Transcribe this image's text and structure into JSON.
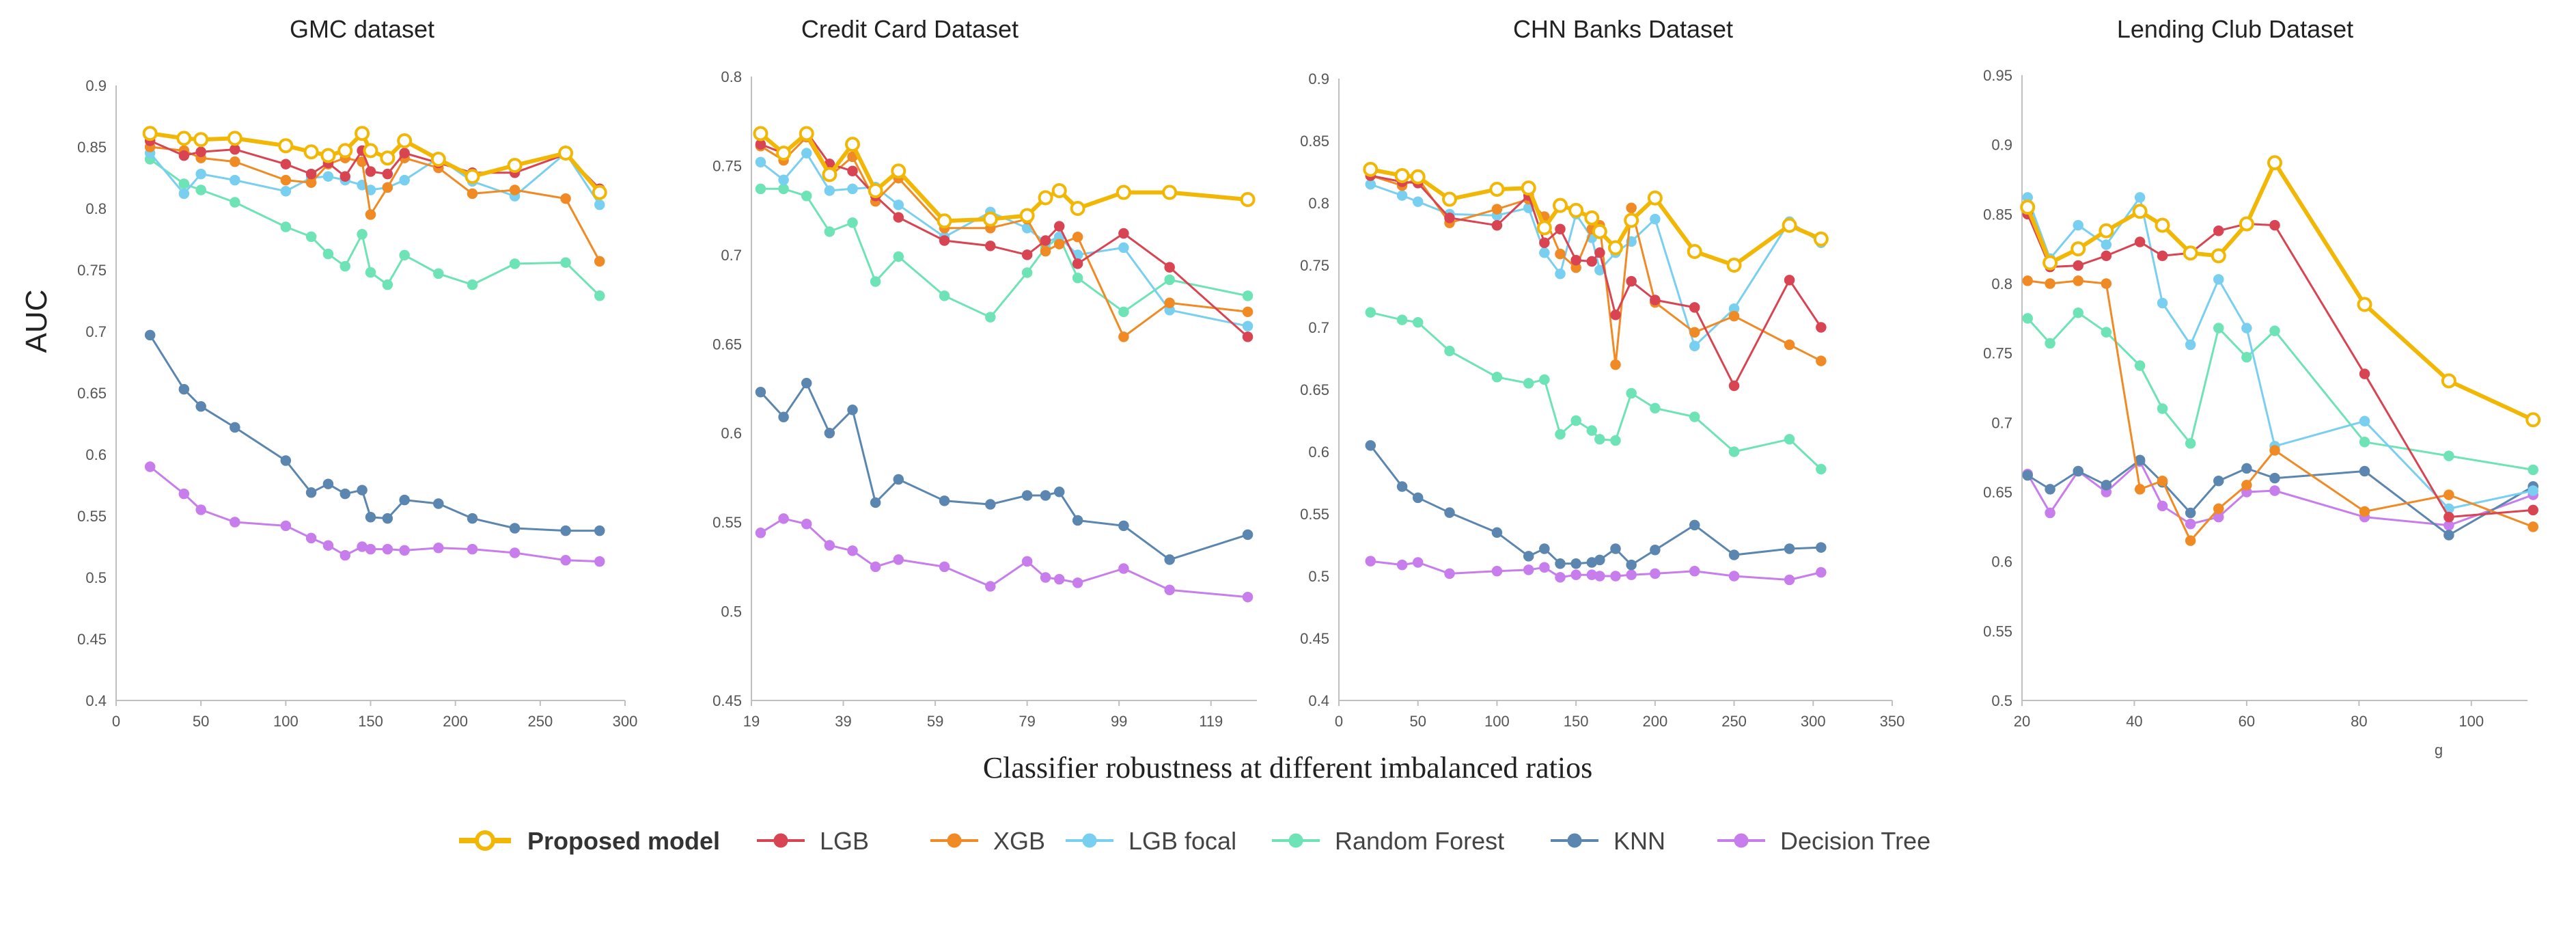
{
  "figure": {
    "ylabel": "AUC",
    "xlabel": "Classifier robustness at different imbalanced ratios"
  },
  "series_styles": [
    {
      "name": "Proposed model",
      "color": "#F2B705",
      "fill": "#ffffff",
      "width": 6,
      "marker": 9
    },
    {
      "name": "LGB",
      "color": "#D94452",
      "fill": "#D94452",
      "width": 3,
      "marker": 7
    },
    {
      "name": "XGB",
      "color": "#F08A24",
      "fill": "#F08A24",
      "width": 3,
      "marker": 7
    },
    {
      "name": "LGB focal",
      "color": "#79CFF0",
      "fill": "#79CFF0",
      "width": 3,
      "marker": 7
    },
    {
      "name": "Random Forest",
      "color": "#6EE3B5",
      "fill": "#6EE3B5",
      "width": 3,
      "marker": 7
    },
    {
      "name": "KNN",
      "color": "#5B86B0",
      "fill": "#5B86B0",
      "width": 3,
      "marker": 7
    },
    {
      "name": "Decision Tree",
      "color": "#C77DEB",
      "fill": "#C77DEB",
      "width": 3,
      "marker": 7
    }
  ],
  "chart_data": [
    {
      "type": "line",
      "title": "GMC dataset",
      "ylim": [
        0.4,
        0.9
      ],
      "yticks": [
        0.4,
        0.45,
        0.5,
        0.55,
        0.6,
        0.65,
        0.7,
        0.75,
        0.8,
        0.85,
        0.9
      ],
      "xlim": [
        0,
        300
      ],
      "xticks": [
        0,
        50,
        100,
        150,
        200,
        250,
        300
      ],
      "x": [
        20,
        40,
        50,
        70,
        100,
        115,
        125,
        135,
        145,
        150,
        160,
        170,
        190,
        210,
        235,
        265,
        285
      ],
      "series": [
        {
          "name": "Proposed model",
          "values": [
            0.861,
            0.857,
            0.856,
            0.857,
            0.851,
            0.846,
            0.843,
            0.847,
            0.861,
            0.847,
            0.841,
            0.855,
            0.84,
            0.826,
            0.835,
            0.845,
            0.813
          ]
        },
        {
          "name": "LGB",
          "values": [
            0.855,
            0.843,
            0.846,
            0.848,
            0.836,
            0.828,
            0.837,
            0.826,
            0.847,
            0.83,
            0.828,
            0.845,
            0.837,
            0.829,
            0.829,
            0.844,
            0.816
          ]
        },
        {
          "name": "XGB",
          "values": [
            0.85,
            0.847,
            0.841,
            0.838,
            0.823,
            0.821,
            0.836,
            0.841,
            0.838,
            0.795,
            0.817,
            0.841,
            0.833,
            0.812,
            0.815,
            0.808,
            0.757
          ]
        },
        {
          "name": "LGB focal",
          "values": [
            0.845,
            0.812,
            0.828,
            0.823,
            0.814,
            0.825,
            0.826,
            0.823,
            0.819,
            0.815,
            0.817,
            0.823,
            0.841,
            0.822,
            0.81,
            0.845,
            0.803
          ]
        },
        {
          "name": "Random Forest",
          "values": [
            0.84,
            0.82,
            0.815,
            0.805,
            0.785,
            0.777,
            0.763,
            0.753,
            0.779,
            0.748,
            0.738,
            0.762,
            0.747,
            0.738,
            0.755,
            0.756,
            0.729
          ]
        },
        {
          "name": "KNN",
          "values": [
            0.697,
            0.653,
            0.639,
            0.622,
            0.595,
            0.569,
            0.576,
            0.568,
            0.571,
            0.549,
            0.548,
            0.563,
            0.56,
            0.548,
            0.54,
            0.538,
            0.538
          ]
        },
        {
          "name": "Decision Tree",
          "values": [
            0.59,
            0.568,
            0.555,
            0.545,
            0.542,
            0.532,
            0.526,
            0.518,
            0.525,
            0.523,
            0.523,
            0.522,
            0.524,
            0.523,
            0.52,
            0.514,
            0.513
          ]
        }
      ]
    },
    {
      "type": "line",
      "title": "Credit Card Dataset",
      "ylim": [
        0.45,
        0.8
      ],
      "yticks": [
        0.45,
        0.5,
        0.55,
        0.6,
        0.65,
        0.7,
        0.75,
        0.8
      ],
      "xlim": [
        19,
        129
      ],
      "xticks": [
        19,
        39,
        59,
        79,
        99,
        119
      ],
      "x": [
        21,
        26,
        31,
        36,
        41,
        46,
        51,
        61,
        71,
        79,
        83,
        86,
        90,
        100,
        110,
        127
      ],
      "series": [
        {
          "name": "Proposed model",
          "values": [
            0.768,
            0.757,
            0.768,
            0.745,
            0.762,
            0.736,
            0.747,
            0.719,
            0.72,
            0.722,
            0.732,
            0.736,
            0.726,
            0.735,
            0.735,
            0.731
          ]
        },
        {
          "name": "LGB",
          "values": [
            0.762,
            0.757,
            0.769,
            0.751,
            0.747,
            0.733,
            0.721,
            0.708,
            0.705,
            0.7,
            0.708,
            0.716,
            0.695,
            0.712,
            0.693,
            0.654
          ]
        },
        {
          "name": "XGB",
          "values": [
            0.761,
            0.753,
            0.766,
            0.744,
            0.755,
            0.73,
            0.743,
            0.715,
            0.715,
            0.72,
            0.702,
            0.706,
            0.71,
            0.654,
            0.673,
            0.668
          ]
        },
        {
          "name": "LGB focal",
          "values": [
            0.752,
            0.742,
            0.757,
            0.736,
            0.737,
            0.738,
            0.728,
            0.71,
            0.724,
            0.715,
            0.707,
            0.71,
            0.7,
            0.704,
            0.669,
            0.66
          ]
        },
        {
          "name": "Random Forest",
          "values": [
            0.737,
            0.737,
            0.733,
            0.713,
            0.718,
            0.685,
            0.699,
            0.677,
            0.665,
            0.69,
            0.704,
            0.71,
            0.687,
            0.668,
            0.686,
            0.677
          ]
        },
        {
          "name": "KNN",
          "values": [
            0.623,
            0.609,
            0.628,
            0.6,
            0.613,
            0.561,
            0.574,
            0.562,
            0.56,
            0.565,
            0.565,
            0.567,
            0.551,
            0.548,
            0.529,
            0.543
          ]
        },
        {
          "name": "Decision Tree",
          "values": [
            0.544,
            0.552,
            0.549,
            0.537,
            0.534,
            0.525,
            0.529,
            0.525,
            0.514,
            0.528,
            0.519,
            0.518,
            0.516,
            0.524,
            0.512,
            0.508
          ]
        }
      ]
    },
    {
      "type": "line",
      "title": "CHN Banks Dataset",
      "ylim": [
        0.4,
        0.9
      ],
      "yticks": [
        0.4,
        0.45,
        0.5,
        0.55,
        0.6,
        0.65,
        0.7,
        0.75,
        0.8,
        0.85,
        0.9
      ],
      "xlim": [
        0,
        350
      ],
      "xticks": [
        0,
        50,
        100,
        150,
        200,
        250,
        300,
        350
      ],
      "x": [
        20,
        40,
        50,
        70,
        100,
        120,
        130,
        140,
        150,
        160,
        165,
        175,
        185,
        200,
        225,
        250,
        285,
        305
      ],
      "series": [
        {
          "name": "Proposed model",
          "values": [
            0.827,
            0.822,
            0.821,
            0.803,
            0.811,
            0.812,
            0.78,
            0.798,
            0.794,
            0.788,
            0.777,
            0.764,
            0.786,
            0.804,
            0.761,
            0.75,
            0.782,
            0.771
          ]
        },
        {
          "name": "LGB",
          "values": [
            0.822,
            0.817,
            0.816,
            0.788,
            0.782,
            0.806,
            0.768,
            0.779,
            0.754,
            0.753,
            0.76,
            0.71,
            0.737,
            0.722,
            0.716,
            0.653,
            0.738,
            0.7
          ]
        },
        {
          "name": "XGB",
          "values": [
            0.822,
            0.814,
            0.82,
            0.784,
            0.795,
            0.803,
            0.789,
            0.759,
            0.748,
            0.779,
            0.782,
            0.67,
            0.796,
            0.72,
            0.696,
            0.709,
            0.686,
            0.673
          ]
        },
        {
          "name": "LGB focal",
          "values": [
            0.815,
            0.806,
            0.801,
            0.791,
            0.79,
            0.796,
            0.76,
            0.743,
            0.791,
            0.772,
            0.746,
            0.76,
            0.769,
            0.787,
            0.685,
            0.715,
            0.785,
            0.768
          ]
        },
        {
          "name": "Random Forest",
          "values": [
            0.712,
            0.706,
            0.704,
            0.681,
            0.66,
            0.655,
            0.658,
            0.614,
            0.625,
            0.617,
            0.61,
            0.609,
            0.647,
            0.635,
            0.628,
            0.6,
            0.61,
            0.586
          ]
        },
        {
          "name": "KNN",
          "values": [
            0.605,
            0.572,
            0.563,
            0.551,
            0.535,
            0.516,
            0.522,
            0.51,
            0.51,
            0.511,
            0.513,
            0.522,
            0.509,
            0.521,
            0.541,
            0.517,
            0.522,
            0.523
          ]
        },
        {
          "name": "Decision Tree",
          "values": [
            0.512,
            0.509,
            0.511,
            0.502,
            0.504,
            0.505,
            0.507,
            0.499,
            0.501,
            0.501,
            0.5,
            0.5,
            0.501,
            0.502,
            0.504,
            0.5,
            0.497,
            0.503
          ]
        }
      ]
    },
    {
      "type": "line",
      "title": "Lending Club Dataset",
      "ylim": [
        0.5,
        0.95
      ],
      "yticks": [
        0.5,
        0.55,
        0.6,
        0.65,
        0.7,
        0.75,
        0.8,
        0.85,
        0.9,
        0.95
      ],
      "xlim": [
        20,
        110
      ],
      "xticks": [
        20,
        40,
        60,
        80,
        100
      ],
      "xtick_labels": [
        "20",
        "40",
        "60",
        "80",
        "100"
      ],
      "x_note": "g",
      "x": [
        21,
        25,
        30,
        35,
        41,
        45,
        50,
        55,
        60,
        65,
        81,
        96,
        111
      ],
      "series": [
        {
          "name": "Proposed model",
          "values": [
            0.855,
            0.815,
            0.825,
            0.838,
            0.852,
            0.842,
            0.822,
            0.82,
            0.843,
            0.887,
            0.785,
            0.73,
            0.702
          ]
        },
        {
          "name": "LGB",
          "values": [
            0.85,
            0.812,
            0.813,
            0.82,
            0.83,
            0.82,
            0.822,
            0.838,
            0.843,
            0.842,
            0.735,
            0.632,
            0.637
          ]
        },
        {
          "name": "XGB",
          "values": [
            0.802,
            0.8,
            0.802,
            0.8,
            0.652,
            0.658,
            0.615,
            0.638,
            0.655,
            0.68,
            0.636,
            0.648,
            0.625
          ]
        },
        {
          "name": "LGB focal",
          "values": [
            0.862,
            0.818,
            0.842,
            0.828,
            0.862,
            0.786,
            0.756,
            0.803,
            0.768,
            0.683,
            0.701,
            0.638,
            0.651
          ]
        },
        {
          "name": "Random Forest",
          "values": [
            0.775,
            0.757,
            0.779,
            0.765,
            0.741,
            0.71,
            0.685,
            0.768,
            0.747,
            0.766,
            0.686,
            0.676,
            0.666
          ]
        },
        {
          "name": "KNN",
          "values": [
            0.662,
            0.652,
            0.665,
            0.655,
            0.673,
            0.657,
            0.635,
            0.658,
            0.667,
            0.66,
            0.665,
            0.619,
            0.654
          ]
        },
        {
          "name": "Decision Tree",
          "values": [
            0.663,
            0.635,
            0.665,
            0.65,
            0.672,
            0.64,
            0.627,
            0.632,
            0.65,
            0.651,
            0.632,
            0.626,
            0.648
          ]
        }
      ]
    }
  ]
}
